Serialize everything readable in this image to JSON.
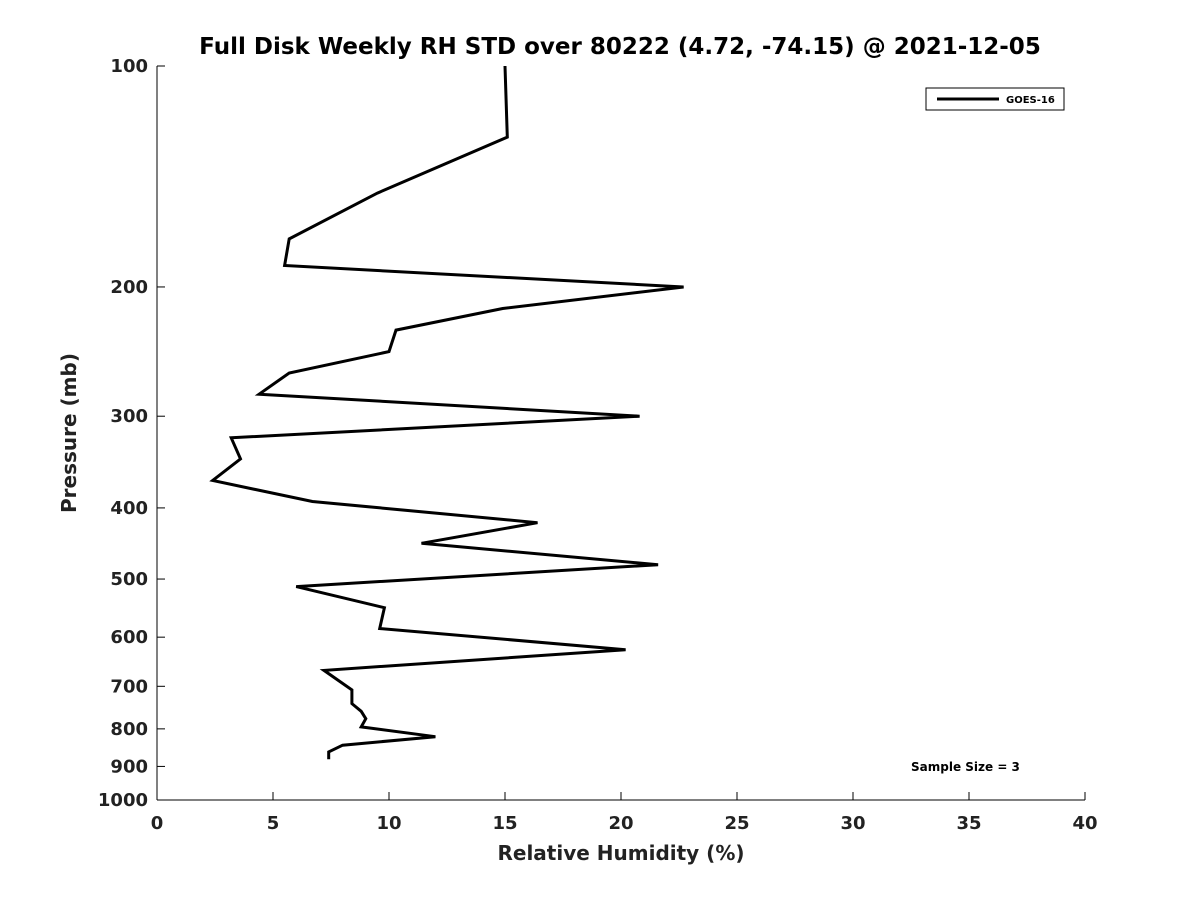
{
  "chart_data": {
    "type": "line",
    "title": "Full Disk Weekly RH STD over 80222 (4.72, -74.15) @ 2021-12-05",
    "xlabel": "Relative Humidity (%)",
    "ylabel": "Pressure (mb)",
    "xlim": [
      0,
      40
    ],
    "ylim": [
      100,
      1000
    ],
    "yscale": "log",
    "y_reversed": true,
    "x_ticks": [
      0,
      5,
      10,
      15,
      20,
      25,
      30,
      35,
      40
    ],
    "y_ticks": [
      100,
      200,
      300,
      400,
      500,
      600,
      700,
      800,
      900,
      1000
    ],
    "grid": false,
    "legend_position": "top-right",
    "annotation": "Sample Size = 3",
    "series": [
      {
        "name": "GOES-16",
        "color": "#000000",
        "points": [
          {
            "rh": 15.0,
            "p": 100
          },
          {
            "rh": 15.1,
            "p": 125
          },
          {
            "rh": 9.5,
            "p": 149
          },
          {
            "rh": 5.7,
            "p": 172
          },
          {
            "rh": 5.5,
            "p": 187
          },
          {
            "rh": 22.7,
            "p": 200
          },
          {
            "rh": 14.9,
            "p": 214
          },
          {
            "rh": 10.3,
            "p": 229
          },
          {
            "rh": 10.0,
            "p": 245
          },
          {
            "rh": 5.7,
            "p": 262
          },
          {
            "rh": 4.4,
            "p": 280
          },
          {
            "rh": 20.8,
            "p": 300
          },
          {
            "rh": 3.2,
            "p": 321
          },
          {
            "rh": 3.6,
            "p": 343
          },
          {
            "rh": 2.4,
            "p": 367
          },
          {
            "rh": 6.7,
            "p": 392
          },
          {
            "rh": 16.4,
            "p": 419
          },
          {
            "rh": 11.4,
            "p": 447
          },
          {
            "rh": 21.6,
            "p": 478
          },
          {
            "rh": 6.0,
            "p": 512
          },
          {
            "rh": 9.8,
            "p": 547
          },
          {
            "rh": 9.6,
            "p": 584
          },
          {
            "rh": 20.2,
            "p": 624
          },
          {
            "rh": 7.2,
            "p": 666
          },
          {
            "rh": 8.4,
            "p": 708
          },
          {
            "rh": 8.4,
            "p": 739
          },
          {
            "rh": 8.8,
            "p": 757
          },
          {
            "rh": 9.0,
            "p": 775
          },
          {
            "rh": 8.8,
            "p": 795
          },
          {
            "rh": 12.0,
            "p": 820
          },
          {
            "rh": 8.0,
            "p": 842
          },
          {
            "rh": 7.4,
            "p": 860
          },
          {
            "rh": 7.4,
            "p": 880
          }
        ]
      }
    ]
  }
}
